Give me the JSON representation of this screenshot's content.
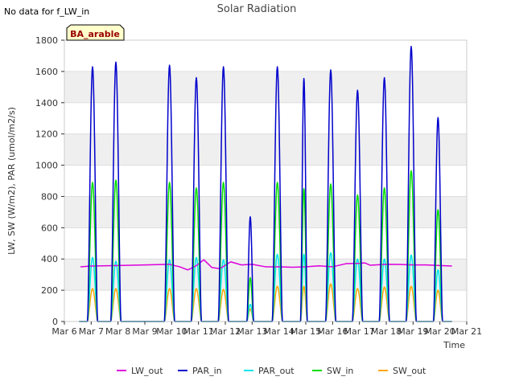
{
  "corner_note": "No data for f_LW_in",
  "badge": "BA_arable",
  "chart_data": {
    "type": "line",
    "title": "Solar Radiation",
    "xlabel": "Time",
    "ylabel": "LW, SW (W/m2), PAR (umol/m2/s)",
    "ylim": [
      0,
      1800
    ],
    "yticks": [
      0,
      200,
      400,
      600,
      800,
      1000,
      1200,
      1400,
      1600,
      1800
    ],
    "xlim": [
      6,
      21
    ],
    "xticks": [
      6,
      7,
      8,
      9,
      10,
      11,
      12,
      13,
      14,
      15,
      16,
      17,
      18,
      19,
      20,
      21
    ],
    "xticklabels": [
      "Mar 6",
      "Mar 7",
      "Mar 8",
      "Mar 9",
      "Mar 10",
      "Mar 11",
      "Mar 12",
      "Mar 13",
      "Mar 14",
      "Mar 15",
      "Mar 16",
      "Mar 17",
      "Mar 18",
      "Mar 19",
      "Mar 20",
      "Mar 21"
    ],
    "grid": "horizontal bands",
    "legend_position": "bottom",
    "day_start": 6.55,
    "day_end": 20.45,
    "lw_out": {
      "x": [
        6.6,
        7.0,
        8.0,
        9.0,
        9.9,
        10.3,
        10.6,
        10.9,
        11.2,
        11.5,
        11.8,
        12.2,
        12.6,
        13.0,
        13.5,
        14.0,
        14.5,
        15.0,
        15.5,
        16.0,
        16.5,
        17.0,
        17.2,
        17.4,
        18.0,
        18.5,
        19.0,
        19.5,
        20.0,
        20.45
      ],
      "y": [
        350,
        355,
        358,
        362,
        366,
        350,
        330,
        355,
        395,
        345,
        338,
        382,
        362,
        366,
        350,
        350,
        347,
        350,
        356,
        350,
        370,
        372,
        375,
        360,
        366,
        365,
        362,
        362,
        358,
        355
      ]
    },
    "days": [
      {
        "c": 7.05,
        "w": 0.09,
        "par": 1630,
        "sw": 890,
        "par_out": 410,
        "sw_out": 210
      },
      {
        "c": 7.92,
        "w": 0.09,
        "par": 1660,
        "sw": 905,
        "par_out": 385,
        "sw_out": 210
      },
      {
        "c": 9.92,
        "w": 0.09,
        "par": 1640,
        "sw": 890,
        "par_out": 395,
        "sw_out": 210
      },
      {
        "c": 10.92,
        "w": 0.09,
        "par": 1560,
        "sw": 855,
        "par_out": 410,
        "sw_out": 210
      },
      {
        "c": 11.93,
        "w": 0.09,
        "par": 1630,
        "sw": 890,
        "par_out": 395,
        "sw_out": 205
      },
      {
        "c": 12.93,
        "w": 0.06,
        "par": 670,
        "sw": 280,
        "par_out": 110,
        "sw_out": 80
      },
      {
        "c": 13.94,
        "w": 0.09,
        "par": 1630,
        "sw": 890,
        "par_out": 430,
        "sw_out": 225
      },
      {
        "c": 14.93,
        "w": 0.06,
        "par": 1555,
        "sw": 850,
        "par_out": 430,
        "sw_out": 225
      },
      {
        "c": 15.93,
        "w": 0.09,
        "par": 1610,
        "sw": 880,
        "par_out": 440,
        "sw_out": 240
      },
      {
        "c": 16.93,
        "w": 0.09,
        "par": 1480,
        "sw": 810,
        "par_out": 400,
        "sw_out": 210
      },
      {
        "c": 17.93,
        "w": 0.09,
        "par": 1560,
        "sw": 855,
        "par_out": 400,
        "sw_out": 220
      },
      {
        "c": 18.93,
        "w": 0.09,
        "par": 1760,
        "sw": 965,
        "par_out": 425,
        "sw_out": 225
      },
      {
        "c": 19.93,
        "w": 0.08,
        "par": 1305,
        "sw": 715,
        "par_out": 330,
        "sw_out": 200
      }
    ],
    "series": [
      {
        "name": "LW_out",
        "color": "#dd00dd"
      },
      {
        "name": "PAR_in",
        "color": "#0000cc"
      },
      {
        "name": "PAR_out",
        "color": "#00e5ee"
      },
      {
        "name": "SW_in",
        "color": "#00dd00"
      },
      {
        "name": "SW_out",
        "color": "#ffa500"
      }
    ]
  }
}
